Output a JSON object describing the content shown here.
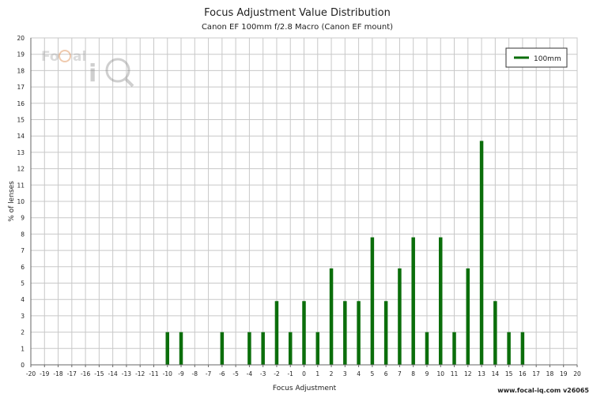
{
  "watermark": {
    "logo_text": "FoCal iQ",
    "footer": "www.focal-iq.com  v26065"
  },
  "colors": {
    "bar": "#0b6e0b",
    "grid": "#c8c8c8",
    "axis": "#666666",
    "text": "#222222",
    "background": "#ffffff"
  },
  "chart_data": {
    "type": "bar",
    "title": "Focus Adjustment Value Distribution",
    "subtitle": "Canon EF 100mm f/2.8 Macro (Canon EF mount)",
    "xlabel": "Focus Adjustment",
    "ylabel": "% of lenses",
    "xlim": [
      -20,
      20
    ],
    "ylim": [
      0,
      20
    ],
    "x_ticks": [
      -20,
      -19,
      -18,
      -17,
      -16,
      -15,
      -14,
      -13,
      -12,
      -11,
      -10,
      -9,
      -8,
      -7,
      -6,
      -5,
      -4,
      -3,
      -2,
      -1,
      0,
      1,
      2,
      3,
      4,
      5,
      6,
      7,
      8,
      9,
      10,
      11,
      12,
      13,
      14,
      15,
      16,
      17,
      18,
      19,
      20
    ],
    "y_ticks": [
      0,
      1,
      2,
      3,
      4,
      5,
      6,
      7,
      8,
      9,
      10,
      11,
      12,
      13,
      14,
      15,
      16,
      17,
      18,
      19,
      20
    ],
    "grid": true,
    "legend_position": "top-right",
    "series": [
      {
        "name": "100mm",
        "color": "#0b6e0b",
        "points": [
          {
            "x": -10,
            "y": 2.0
          },
          {
            "x": -9,
            "y": 2.0
          },
          {
            "x": -6,
            "y": 2.0
          },
          {
            "x": -4,
            "y": 2.0
          },
          {
            "x": -3,
            "y": 2.0
          },
          {
            "x": -2,
            "y": 3.9
          },
          {
            "x": -1,
            "y": 2.0
          },
          {
            "x": 0,
            "y": 3.9
          },
          {
            "x": 1,
            "y": 2.0
          },
          {
            "x": 2,
            "y": 5.9
          },
          {
            "x": 3,
            "y": 3.9
          },
          {
            "x": 4,
            "y": 3.9
          },
          {
            "x": 5,
            "y": 7.8
          },
          {
            "x": 6,
            "y": 3.9
          },
          {
            "x": 7,
            "y": 5.9
          },
          {
            "x": 8,
            "y": 7.8
          },
          {
            "x": 9,
            "y": 2.0
          },
          {
            "x": 10,
            "y": 7.8
          },
          {
            "x": 11,
            "y": 2.0
          },
          {
            "x": 12,
            "y": 5.9
          },
          {
            "x": 13,
            "y": 13.7
          },
          {
            "x": 14,
            "y": 3.9
          },
          {
            "x": 15,
            "y": 2.0
          },
          {
            "x": 16,
            "y": 2.0
          }
        ]
      }
    ]
  }
}
